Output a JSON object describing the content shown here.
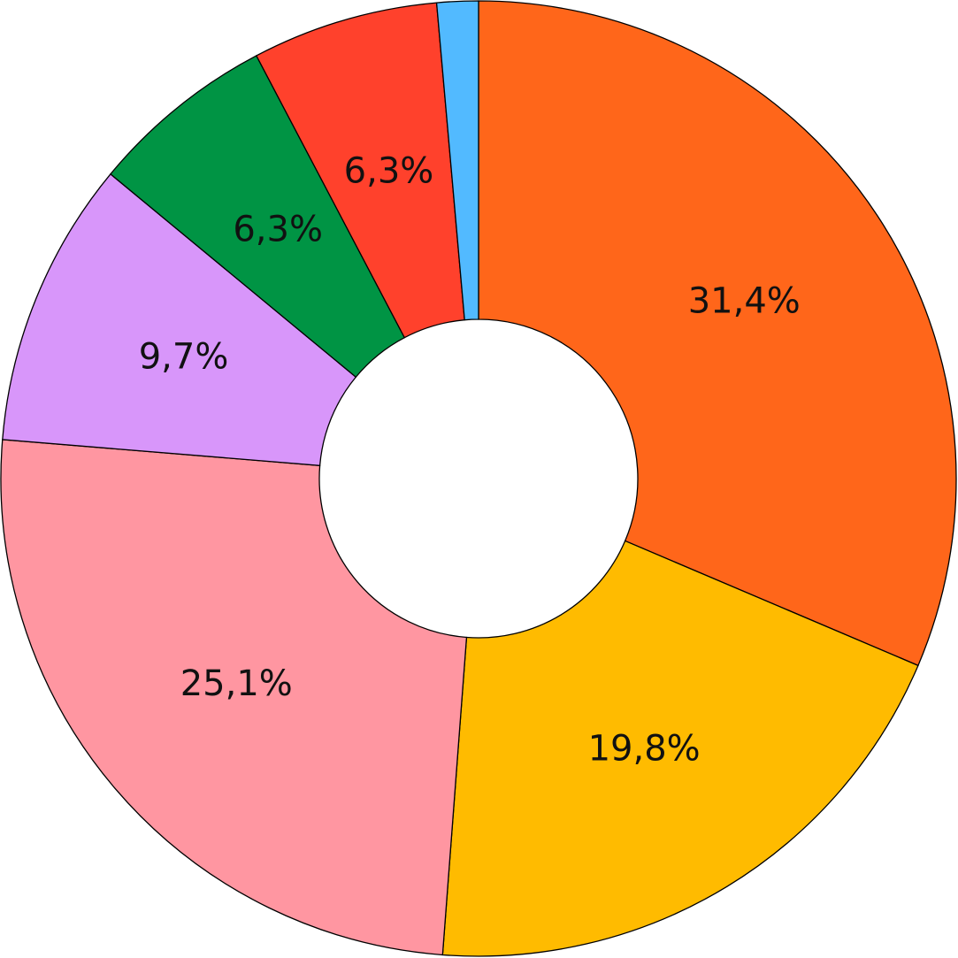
{
  "chart_data": {
    "type": "donut",
    "values": [
      31.4,
      19.8,
      25.1,
      9.7,
      6.3,
      6.3,
      1.4
    ],
    "value_labels": [
      "31,4%",
      "19,8%",
      "25,1%",
      "9,7%",
      "6,3%",
      "6,3%",
      null
    ],
    "colors": [
      "#ff661a",
      "#ffbb00",
      "#ff96a1",
      "#d896fa",
      "#009444",
      "#ff412c",
      "#52baff"
    ]
  }
}
